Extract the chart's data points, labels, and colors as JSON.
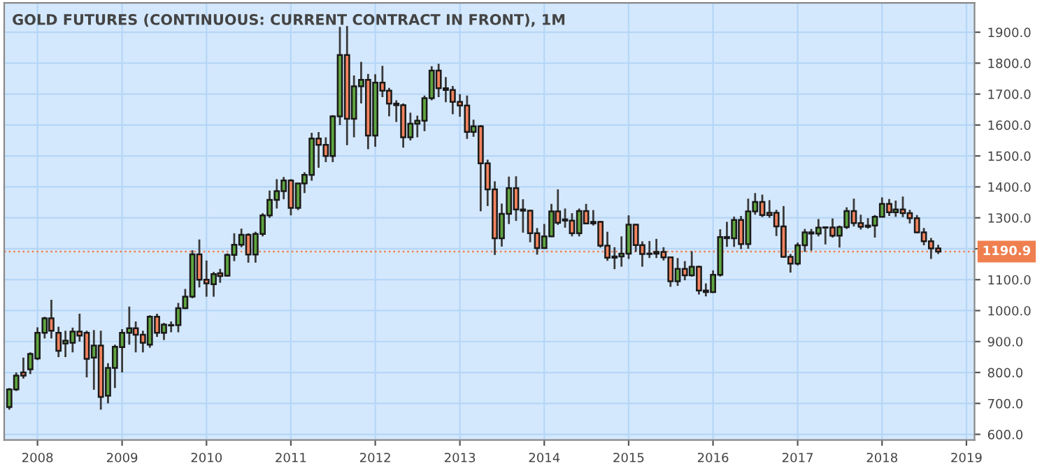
{
  "chart_data": {
    "type": "candlestick",
    "title": "GOLD FUTURES (CONTINUOUS: CURRENT CONTRACT IN FRONT), 1M",
    "x": [
      "2007-09",
      "2007-10",
      "2007-11",
      "2007-12",
      "2008-01",
      "2008-02",
      "2008-03",
      "2008-04",
      "2008-05",
      "2008-06",
      "2008-07",
      "2008-08",
      "2008-09",
      "2008-10",
      "2008-11",
      "2008-12",
      "2009-01",
      "2009-02",
      "2009-03",
      "2009-04",
      "2009-05",
      "2009-06",
      "2009-07",
      "2009-08",
      "2009-09",
      "2009-10",
      "2009-11",
      "2009-12",
      "2010-01",
      "2010-02",
      "2010-03",
      "2010-04",
      "2010-05",
      "2010-06",
      "2010-07",
      "2010-08",
      "2010-09",
      "2010-10",
      "2010-11",
      "2010-12",
      "2011-01",
      "2011-02",
      "2011-03",
      "2011-04",
      "2011-05",
      "2011-06",
      "2011-07",
      "2011-08",
      "2011-09",
      "2011-10",
      "2011-11",
      "2011-12",
      "2012-01",
      "2012-02",
      "2012-03",
      "2012-04",
      "2012-05",
      "2012-06",
      "2012-07",
      "2012-08",
      "2012-09",
      "2012-10",
      "2012-11",
      "2012-12",
      "2013-01",
      "2013-02",
      "2013-03",
      "2013-04",
      "2013-05",
      "2013-06",
      "2013-07",
      "2013-08",
      "2013-09",
      "2013-10",
      "2013-11",
      "2013-12",
      "2014-01",
      "2014-02",
      "2014-03",
      "2014-04",
      "2014-05",
      "2014-06",
      "2014-07",
      "2014-08",
      "2014-09",
      "2014-10",
      "2014-11",
      "2014-12",
      "2015-01",
      "2015-02",
      "2015-03",
      "2015-04",
      "2015-05",
      "2015-06",
      "2015-07",
      "2015-08",
      "2015-09",
      "2015-10",
      "2015-11",
      "2015-12",
      "2016-01",
      "2016-02",
      "2016-03",
      "2016-04",
      "2016-05",
      "2016-06",
      "2016-07",
      "2016-08",
      "2016-09",
      "2016-10",
      "2016-11",
      "2016-12",
      "2017-01",
      "2017-02",
      "2017-03",
      "2017-04",
      "2017-05",
      "2017-06",
      "2017-07",
      "2017-08",
      "2017-09",
      "2017-10",
      "2017-11",
      "2017-12",
      "2018-01",
      "2018-02",
      "2018-03",
      "2018-04",
      "2018-05",
      "2018-06",
      "2018-07",
      "2018-08",
      "2018-09"
    ],
    "ohlc": [
      [
        688,
        750,
        680,
        745
      ],
      [
        745,
        800,
        740,
        790
      ],
      [
        800,
        848,
        780,
        790
      ],
      [
        810,
        865,
        795,
        860
      ],
      [
        845,
        946,
        840,
        928
      ],
      [
        928,
        980,
        910,
        975
      ],
      [
        975,
        1035,
        910,
        935
      ],
      [
        928,
        948,
        850,
        870
      ],
      [
        894,
        935,
        850,
        903
      ],
      [
        896,
        945,
        865,
        932
      ],
      [
        932,
        990,
        900,
        919
      ],
      [
        928,
        935,
        784,
        844
      ],
      [
        848,
        937,
        744,
        887
      ],
      [
        887,
        935,
        680,
        721
      ],
      [
        725,
        830,
        700,
        815
      ],
      [
        815,
        890,
        750,
        883
      ],
      [
        882,
        940,
        800,
        928
      ],
      [
        928,
        1013,
        890,
        943
      ],
      [
        943,
        965,
        865,
        922
      ],
      [
        922,
        935,
        865,
        896
      ],
      [
        890,
        985,
        880,
        980
      ],
      [
        980,
        990,
        915,
        928
      ],
      [
        928,
        960,
        905,
        955
      ],
      [
        952,
        965,
        930,
        953
      ],
      [
        953,
        1025,
        930,
        1008
      ],
      [
        1008,
        1070,
        1005,
        1045
      ],
      [
        1045,
        1195,
        1040,
        1182
      ],
      [
        1182,
        1230,
        1075,
        1100
      ],
      [
        1100,
        1162,
        1045,
        1088
      ],
      [
        1085,
        1125,
        1045,
        1118
      ],
      [
        1121,
        1135,
        1090,
        1112
      ],
      [
        1113,
        1185,
        1110,
        1180
      ],
      [
        1180,
        1250,
        1160,
        1213
      ],
      [
        1213,
        1265,
        1205,
        1245
      ],
      [
        1245,
        1250,
        1155,
        1181
      ],
      [
        1181,
        1255,
        1155,
        1248
      ],
      [
        1248,
        1315,
        1240,
        1308
      ],
      [
        1308,
        1388,
        1300,
        1358
      ],
      [
        1358,
        1425,
        1330,
        1386
      ],
      [
        1386,
        1432,
        1360,
        1421
      ],
      [
        1421,
        1425,
        1308,
        1332
      ],
      [
        1332,
        1412,
        1325,
        1411
      ],
      [
        1411,
        1447,
        1380,
        1439
      ],
      [
        1439,
        1575,
        1420,
        1556
      ],
      [
        1556,
        1577,
        1462,
        1536
      ],
      [
        1536,
        1560,
        1480,
        1500
      ],
      [
        1500,
        1632,
        1480,
        1628
      ],
      [
        1628,
        1917,
        1600,
        1826
      ],
      [
        1826,
        1920,
        1535,
        1620
      ],
      [
        1620,
        1760,
        1560,
        1725
      ],
      [
        1725,
        1804,
        1670,
        1746
      ],
      [
        1746,
        1765,
        1522,
        1566
      ],
      [
        1566,
        1764,
        1530,
        1737
      ],
      [
        1737,
        1791,
        1690,
        1711
      ],
      [
        1711,
        1720,
        1628,
        1669
      ],
      [
        1669,
        1680,
        1610,
        1664
      ],
      [
        1664,
        1670,
        1527,
        1560
      ],
      [
        1560,
        1640,
        1550,
        1604
      ],
      [
        1604,
        1630,
        1560,
        1614
      ],
      [
        1614,
        1695,
        1580,
        1687
      ],
      [
        1687,
        1790,
        1680,
        1776
      ],
      [
        1776,
        1798,
        1690,
        1719
      ],
      [
        1719,
        1755,
        1674,
        1713
      ],
      [
        1713,
        1726,
        1635,
        1675
      ],
      [
        1675,
        1700,
        1627,
        1663
      ],
      [
        1663,
        1695,
        1555,
        1578
      ],
      [
        1578,
        1617,
        1562,
        1596
      ],
      [
        1596,
        1600,
        1321,
        1476
      ],
      [
        1476,
        1488,
        1338,
        1392
      ],
      [
        1392,
        1418,
        1180,
        1234
      ],
      [
        1234,
        1346,
        1207,
        1313
      ],
      [
        1313,
        1433,
        1280,
        1396
      ],
      [
        1396,
        1434,
        1290,
        1327
      ],
      [
        1327,
        1360,
        1252,
        1323
      ],
      [
        1323,
        1326,
        1221,
        1250
      ],
      [
        1250,
        1267,
        1181,
        1202
      ],
      [
        1202,
        1280,
        1200,
        1240
      ],
      [
        1240,
        1345,
        1238,
        1321
      ],
      [
        1321,
        1392,
        1277,
        1284
      ],
      [
        1295,
        1330,
        1268,
        1291
      ],
      [
        1291,
        1315,
        1240,
        1250
      ],
      [
        1250,
        1330,
        1240,
        1322
      ],
      [
        1322,
        1345,
        1280,
        1282
      ],
      [
        1282,
        1325,
        1275,
        1287
      ],
      [
        1287,
        1290,
        1204,
        1210
      ],
      [
        1210,
        1255,
        1161,
        1171
      ],
      [
        1171,
        1205,
        1134,
        1175
      ],
      [
        1175,
        1240,
        1142,
        1184
      ],
      [
        1184,
        1308,
        1167,
        1278
      ],
      [
        1278,
        1280,
        1190,
        1212
      ],
      [
        1212,
        1224,
        1142,
        1183
      ],
      [
        1183,
        1225,
        1170,
        1184
      ],
      [
        1190,
        1232,
        1170,
        1184
      ],
      [
        1190,
        1205,
        1162,
        1172
      ],
      [
        1172,
        1175,
        1077,
        1095
      ],
      [
        1095,
        1170,
        1080,
        1135
      ],
      [
        1135,
        1160,
        1098,
        1114
      ],
      [
        1114,
        1192,
        1110,
        1142
      ],
      [
        1142,
        1145,
        1052,
        1065
      ],
      [
        1065,
        1088,
        1046,
        1060
      ],
      [
        1060,
        1130,
        1057,
        1116
      ],
      [
        1116,
        1263,
        1110,
        1238
      ],
      [
        1238,
        1287,
        1206,
        1234
      ],
      [
        1234,
        1304,
        1206,
        1293
      ],
      [
        1293,
        1306,
        1199,
        1215
      ],
      [
        1215,
        1362,
        1200,
        1321
      ],
      [
        1321,
        1380,
        1310,
        1351
      ],
      [
        1351,
        1375,
        1302,
        1309
      ],
      [
        1316,
        1357,
        1300,
        1309
      ],
      [
        1316,
        1326,
        1241,
        1272
      ],
      [
        1272,
        1338,
        1171,
        1174
      ],
      [
        1174,
        1183,
        1123,
        1152
      ],
      [
        1152,
        1220,
        1146,
        1211
      ],
      [
        1211,
        1264,
        1190,
        1253
      ],
      [
        1253,
        1264,
        1194,
        1249
      ],
      [
        1249,
        1296,
        1240,
        1268
      ],
      [
        1268,
        1272,
        1214,
        1269
      ],
      [
        1269,
        1298,
        1236,
        1242
      ],
      [
        1242,
        1275,
        1204,
        1270
      ],
      [
        1270,
        1334,
        1264,
        1322
      ],
      [
        1322,
        1362,
        1272,
        1283
      ],
      [
        1283,
        1310,
        1262,
        1271
      ],
      [
        1271,
        1299,
        1265,
        1275
      ],
      [
        1275,
        1309,
        1236,
        1303
      ],
      [
        1303,
        1366,
        1302,
        1345
      ],
      [
        1345,
        1361,
        1306,
        1318
      ],
      [
        1318,
        1356,
        1303,
        1327
      ],
      [
        1327,
        1369,
        1302,
        1315
      ],
      [
        1315,
        1326,
        1282,
        1299
      ],
      [
        1299,
        1309,
        1250,
        1253
      ],
      [
        1253,
        1267,
        1211,
        1224
      ],
      [
        1224,
        1235,
        1167,
        1201
      ],
      [
        1201,
        1213,
        1183,
        1191
      ]
    ],
    "xlim": [
      "2007-08-10",
      "2019-02-05"
    ],
    "xticks": [
      "2008",
      "2009",
      "2010",
      "2011",
      "2012",
      "2013",
      "2014",
      "2015",
      "2016",
      "2017",
      "2018",
      "2019"
    ],
    "ylim": [
      582,
      1995
    ],
    "yticks": [
      {
        "value": 600,
        "label": "600.0"
      },
      {
        "value": 700,
        "label": "700.0"
      },
      {
        "value": 800,
        "label": "800.0"
      },
      {
        "value": 900,
        "label": "900.0"
      },
      {
        "value": 1000,
        "label": "1000.0"
      },
      {
        "value": 1100,
        "label": "1100.0"
      },
      {
        "value": 1200,
        "label": null
      },
      {
        "value": 1300,
        "label": "1300.0"
      },
      {
        "value": 1400,
        "label": "1400.0"
      },
      {
        "value": 1500,
        "label": "1500.0"
      },
      {
        "value": 1600,
        "label": "1600.0"
      },
      {
        "value": 1700,
        "label": "1700.0"
      },
      {
        "value": 1800,
        "label": "1800.0"
      },
      {
        "value": 1900,
        "label": "1900.0"
      }
    ],
    "ref_lines": [
      {
        "axis": "y",
        "value": 1190.9,
        "label": "1190.9",
        "color": "#f07f4f",
        "line_style": "dotted"
      }
    ],
    "grid": true
  }
}
